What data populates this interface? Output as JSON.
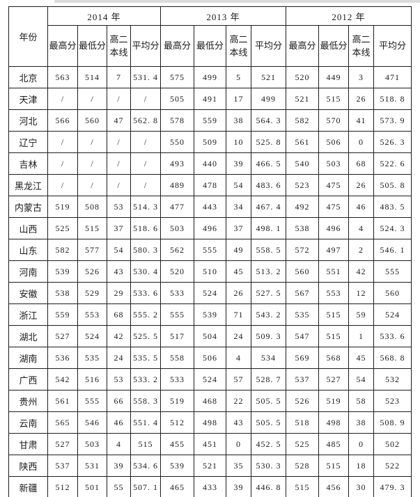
{
  "table": {
    "corner_header": "年份",
    "year_groups": [
      "2014 年",
      "2013 年",
      "2012 年"
    ],
    "sub_headers": [
      "最高分",
      "最低分",
      "高二本线",
      "平均分"
    ],
    "rows": [
      {
        "province": "北京",
        "values": [
          "563",
          "514",
          "7",
          "531. 4",
          "575",
          "499",
          "5",
          "521",
          "520",
          "449",
          "3",
          "471"
        ]
      },
      {
        "province": "天津",
        "values": [
          "/",
          "/",
          "/",
          "/",
          "505",
          "491",
          "17",
          "499",
          "521",
          "515",
          "26",
          "518. 8"
        ]
      },
      {
        "province": "河北",
        "values": [
          "566",
          "560",
          "47",
          "562. 8",
          "578",
          "559",
          "38",
          "564. 3",
          "582",
          "570",
          "41",
          "573. 9"
        ]
      },
      {
        "province": "辽宁",
        "values": [
          "/",
          "/",
          "/",
          "/",
          "550",
          "509",
          "10",
          "525. 8",
          "561",
          "506",
          "0",
          "526. 3"
        ]
      },
      {
        "province": "吉林",
        "values": [
          "/",
          "/",
          "/",
          "/",
          "493",
          "440",
          "39",
          "466. 5",
          "540",
          "503",
          "68",
          "522. 6"
        ]
      },
      {
        "province": "黑龙江",
        "values": [
          "/",
          "/",
          "/",
          "/",
          "489",
          "478",
          "54",
          "483. 6",
          "523",
          "475",
          "26",
          "505. 8"
        ]
      },
      {
        "province": "内蒙古",
        "values": [
          "519",
          "508",
          "53",
          "514. 3",
          "477",
          "443",
          "34",
          "467. 4",
          "492",
          "475",
          "46",
          "483. 5"
        ]
      },
      {
        "province": "山西",
        "values": [
          "525",
          "515",
          "37",
          "518. 6",
          "503",
          "496",
          "37",
          "498. 1",
          "538",
          "496",
          "4",
          "524. 3"
        ]
      },
      {
        "province": "山东",
        "values": [
          "582",
          "577",
          "54",
          "580. 3",
          "562",
          "555",
          "49",
          "558. 5",
          "572",
          "497",
          "2",
          "546. 1"
        ]
      },
      {
        "province": "河南",
        "values": [
          "539",
          "526",
          "43",
          "530. 4",
          "520",
          "510",
          "45",
          "513. 2",
          "560",
          "551",
          "42",
          "555"
        ]
      },
      {
        "province": "安徽",
        "values": [
          "538",
          "529",
          "29",
          "533. 6",
          "533",
          "524",
          "26",
          "527. 5",
          "567",
          "553",
          "12",
          "560"
        ]
      },
      {
        "province": "浙江",
        "values": [
          "559",
          "553",
          "68",
          "555. 2",
          "555",
          "539",
          "71",
          "543. 2",
          "535",
          "515",
          "59",
          "524"
        ]
      },
      {
        "province": "湖北",
        "values": [
          "527",
          "524",
          "42",
          "525. 5",
          "517",
          "504",
          "24",
          "509. 3",
          "547",
          "515",
          "1",
          "533. 6"
        ]
      },
      {
        "province": "湖南",
        "values": [
          "536",
          "535",
          "24",
          "535. 5",
          "558",
          "506",
          "4",
          "534",
          "569",
          "568",
          "45",
          "568. 8"
        ]
      },
      {
        "province": "广西",
        "values": [
          "542",
          "516",
          "53",
          "533. 2",
          "533",
          "524",
          "57",
          "528. 7",
          "537",
          "527",
          "54",
          "532"
        ]
      },
      {
        "province": "贵州",
        "values": [
          "561",
          "555",
          "66",
          "558. 3",
          "519",
          "468",
          "22",
          "505. 5",
          "526",
          "519",
          "58",
          "523"
        ]
      },
      {
        "province": "云南",
        "values": [
          "565",
          "546",
          "46",
          "551. 4",
          "512",
          "498",
          "43",
          "505. 5",
          "518",
          "498",
          "38",
          "508. 9"
        ]
      },
      {
        "province": "甘肃",
        "values": [
          "527",
          "503",
          "4",
          "515",
          "455",
          "451",
          "0",
          "452. 5",
          "525",
          "485",
          "0",
          "502"
        ]
      },
      {
        "province": "陕西",
        "values": [
          "537",
          "531",
          "39",
          "534. 6",
          "539",
          "521",
          "35",
          "530. 3",
          "528",
          "515",
          "18",
          "522"
        ]
      },
      {
        "province": "新疆",
        "values": [
          "512",
          "501",
          "55",
          "507. 1",
          "465",
          "433",
          "39",
          "446. 8",
          "515",
          "456",
          "30",
          "479. 3"
        ]
      }
    ]
  }
}
